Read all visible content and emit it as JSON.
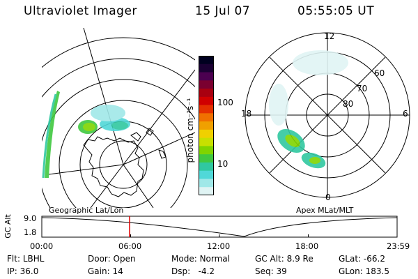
{
  "header": {
    "title": "Ultraviolet Imager",
    "date": "15 Jul 07",
    "time": "05:55:05 UT"
  },
  "colorbar": {
    "unit_label": "photon cm⁻²s⁻¹",
    "tick_labels": [
      "100",
      "10"
    ],
    "colors": [
      "#000020",
      "#1a0033",
      "#4b0050",
      "#7a0030",
      "#a80010",
      "#d00000",
      "#e43000",
      "#f07000",
      "#f0a000",
      "#f0d000",
      "#c8e000",
      "#80d400",
      "#40c840",
      "#30c8a0",
      "#50d8d8",
      "#a0e8e8",
      "#e0f4f4"
    ]
  },
  "left_panel": {
    "caption": "Geographic Lat/Lon"
  },
  "right_panel": {
    "caption": "Apex MLat/MLT",
    "mlt_labels": [
      "12",
      "18",
      "6",
      "0"
    ],
    "lat_labels": [
      "60",
      "70",
      "80"
    ]
  },
  "timeline": {
    "ylabel": "GC Alt",
    "y_ticks": [
      "9.0",
      "1.8"
    ],
    "x_ticks": [
      "00:00",
      "06:00",
      "12:00",
      "18:00",
      "23:59"
    ],
    "current_time_fraction": 0.247
  },
  "info": {
    "flt_label": "Flt:",
    "flt_value": "LBHL",
    "ip_label": "IP:",
    "ip_value": "36.0",
    "door_label": "Door:",
    "door_value": "Open",
    "gain_label": "Gain:",
    "gain_value": "14",
    "mode_label": "Mode:",
    "mode_value": "Normal",
    "dsp_label": "Dsp:",
    "dsp_value": "-4.2",
    "gcalt_label": "GC Alt:",
    "gcalt_value": "8.9 Re",
    "seq_label": "Seq:",
    "seq_value": "39",
    "glat_label": "GLat:",
    "glat_value": "-66.2",
    "glon_label": "GLon:",
    "glon_value": "183.5"
  }
}
